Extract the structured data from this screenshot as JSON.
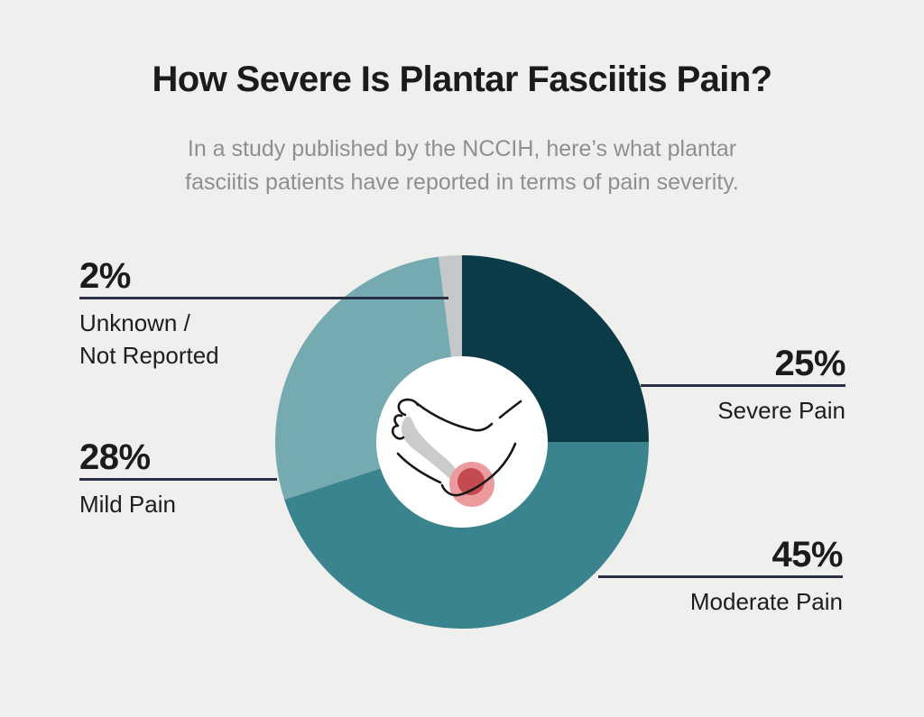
{
  "header": {
    "title": "How Severe Is Plantar Fasciitis Pain?",
    "subtitle_line1": "In a study published by the NCCIH, here’s what plantar",
    "subtitle_line2": "fasciitis patients have reported in terms of pain severity."
  },
  "chart_data": {
    "type": "pie",
    "variant": "donut",
    "title": "How Severe Is Plantar Fasciitis Pain?",
    "start_angle_deg": 0,
    "direction": "clockwise",
    "total": 100,
    "segments": [
      {
        "label": "Severe Pain",
        "value_pct": 25,
        "display": "25%",
        "color": "#0c3b48"
      },
      {
        "label": "Moderate Pain",
        "value_pct": 45,
        "display": "45%",
        "color": "#3a8490"
      },
      {
        "label": "Mild Pain",
        "value_pct": 28,
        "display": "28%",
        "color": "#76aab1"
      },
      {
        "label": "Unknown / Not Reported",
        "value_pct": 2,
        "display": "2%",
        "color": "#c4c8ca",
        "label_line1": "Unknown /",
        "label_line2": "Not Reported"
      }
    ],
    "center_icon": "foot-with-heel-pain-spot",
    "legend_position": "callout-lines"
  },
  "colors": {
    "background": "#efefee",
    "title_text": "#1b1b1b",
    "subtitle_text": "#8e9090",
    "callout_line": "#2a3046",
    "label_text": "#1d1d1d",
    "donut_hole": "#ffffff",
    "pain_spot_outer": "#eb9b9e",
    "pain_spot_inner": "#c34a4f",
    "fascia_shade": "#cbcbcb"
  }
}
